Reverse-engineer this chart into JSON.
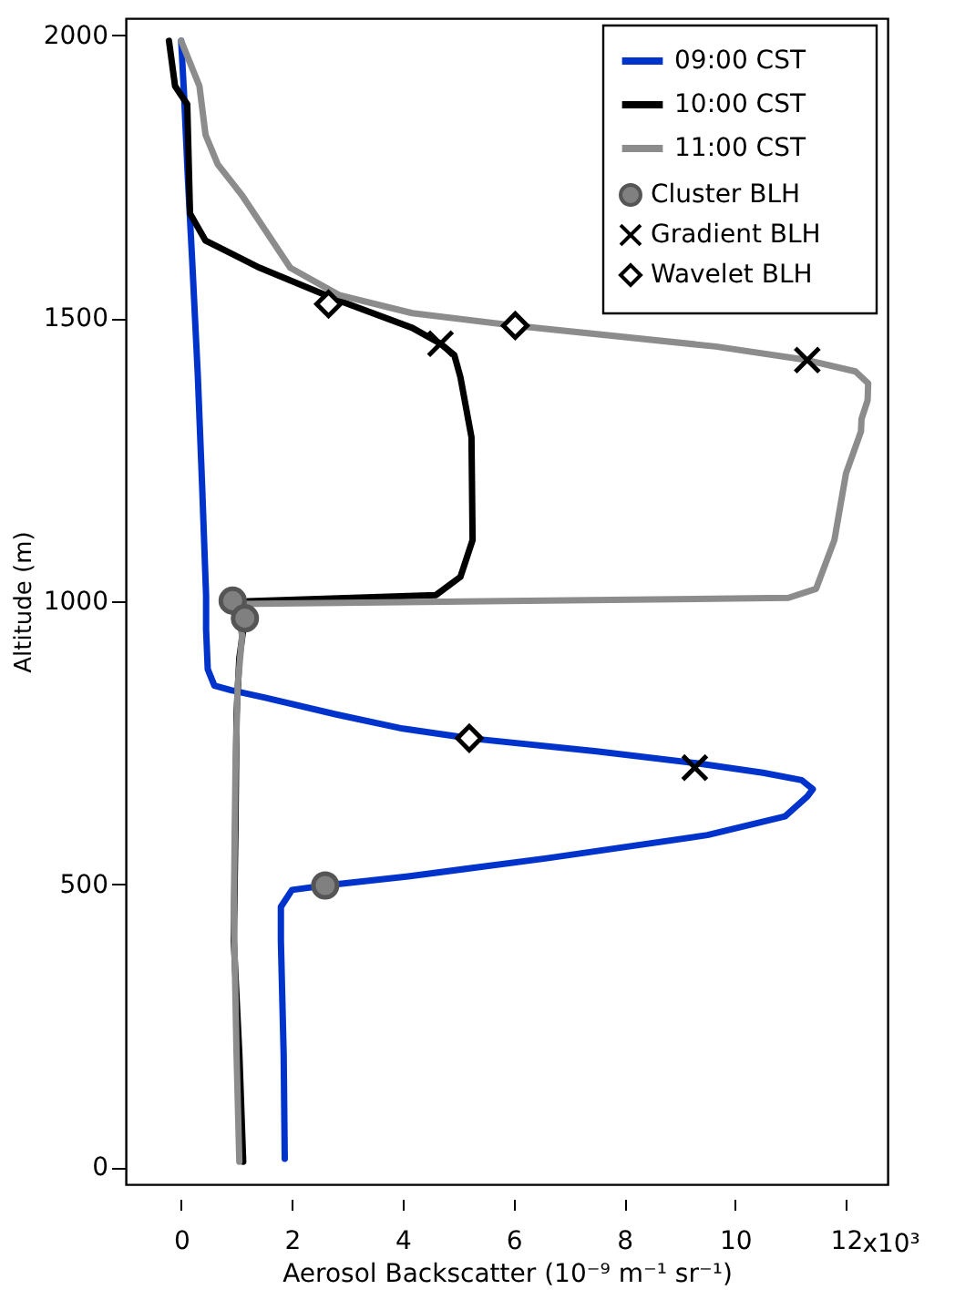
{
  "chart_data": {
    "type": "line",
    "xlabel": "Aerosol Backscatter (10⁻⁹ m⁻¹ sr⁻¹)",
    "ylabel": "Altitude (m)",
    "xlim": [
      -1,
      12.75
    ],
    "ylim": [
      -30,
      2030
    ],
    "xticks": [
      0,
      2,
      4,
      6,
      8,
      10,
      12
    ],
    "yticks": [
      0,
      500,
      1000,
      1500,
      2000
    ],
    "annotations": [
      "x10³"
    ],
    "grid": false,
    "legend": "top right",
    "line_style": "solid",
    "series": [
      {
        "name": "09:00 CST",
        "color": "#0033cc",
        "x": [
          1.87,
          1.85,
          1.8,
          1.8,
          2.0,
          2.6,
          4.1,
          6.6,
          9.5,
          10.9,
          11.3,
          11.4,
          11.2,
          10.5,
          9.3,
          7.5,
          5.2,
          4.0,
          2.8,
          1.5,
          0.9,
          0.6,
          0.48,
          0.45,
          0.45,
          0.38,
          0.3,
          0.2,
          0.12,
          0.05,
          0.0
        ],
        "values": [
          15,
          200,
          400,
          460,
          490,
          498,
          514,
          546,
          587,
          620,
          655,
          668,
          684,
          697,
          714,
          735,
          758,
          775,
          800,
          830,
          843,
          851,
          880,
          950,
          1010,
          1200,
          1400,
          1600,
          1750,
          1900,
          1990
        ]
      },
      {
        "name": "10:00 CST",
        "color": "#000000",
        "x": [
          1.12,
          1.05,
          0.95,
          0.98,
          1.0,
          1.05,
          1.15,
          1.2,
          4.6,
          5.04,
          5.26,
          5.24,
          5.04,
          4.93,
          4.68,
          4.17,
          2.85,
          1.42,
          0.44,
          0.16,
          0.11,
          -0.11,
          -0.22
        ],
        "values": [
          10,
          200,
          400,
          600,
          800,
          900,
          970,
          1000,
          1011,
          1043,
          1108,
          1290,
          1396,
          1435,
          1455,
          1483,
          1531,
          1589,
          1637,
          1685,
          1878,
          1910,
          1990
        ]
      },
      {
        "name": "11:00 CST",
        "color": "#8c8c8c",
        "x": [
          1.05,
          1.0,
          0.95,
          0.98,
          1.02,
          1.1,
          0.99,
          10.96,
          11.46,
          11.79,
          12.0,
          12.27,
          12.28,
          12.39,
          12.4,
          12.17,
          11.3,
          9.65,
          6.03,
          4.17,
          2.85,
          1.97,
          1.1,
          0.66,
          0.44,
          0.33,
          0.0
        ],
        "values": [
          10,
          200,
          450,
          700,
          850,
          940,
          995,
          1006,
          1022,
          1108,
          1226,
          1300,
          1322,
          1355,
          1385,
          1406,
          1426,
          1450,
          1487,
          1509,
          1541,
          1589,
          1717,
          1772,
          1824,
          1910,
          1990
        ]
      },
      {
        "name": "Cluster BLH",
        "type": "scatter",
        "marker": "circle",
        "color": "#808080",
        "x": [
          2.6,
          0.93,
          1.15
        ],
        "values": [
          498,
          1001,
          970
        ]
      },
      {
        "name": "Gradient BLH",
        "type": "scatter",
        "marker": "cross",
        "color": "#000000",
        "x": [
          9.27,
          4.68,
          11.3
        ],
        "values": [
          706,
          1455,
          1426
        ]
      },
      {
        "name": "Wavelet BLH",
        "type": "scatter",
        "marker": "diamond",
        "color": "#000000",
        "x": [
          5.2,
          2.66,
          6.03
        ],
        "values": [
          758,
          1525,
          1487
        ]
      }
    ]
  }
}
